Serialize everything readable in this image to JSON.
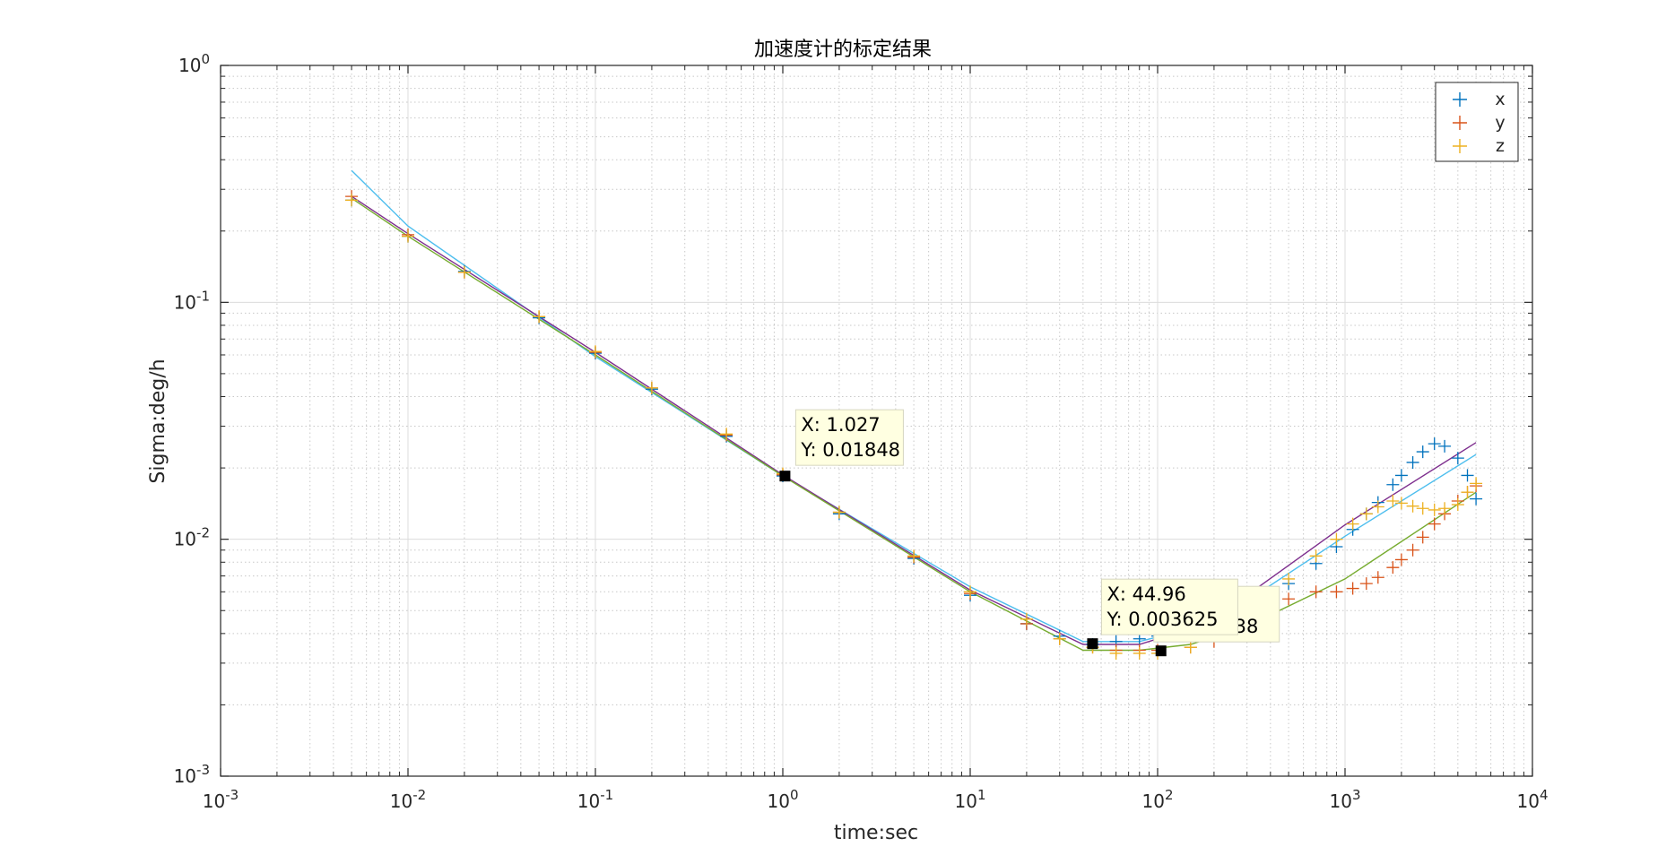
{
  "chart_data": {
    "type": "scatter",
    "title": "加速度计的标定结果",
    "xlabel": "time:sec",
    "ylabel": "Sigma:deg/h",
    "xscale": "log",
    "yscale": "log",
    "xlim": [
      0.001,
      10000
    ],
    "ylim": [
      0.001,
      1
    ],
    "grid": true,
    "minor_grid": true,
    "legend_position": "top-right",
    "x_ticks": [
      {
        "base": "10",
        "exp": "-3",
        "value": 0.001
      },
      {
        "base": "10",
        "exp": "-2",
        "value": 0.01
      },
      {
        "base": "10",
        "exp": "-1",
        "value": 0.1
      },
      {
        "base": "10",
        "exp": "0",
        "value": 1
      },
      {
        "base": "10",
        "exp": "1",
        "value": 10
      },
      {
        "base": "10",
        "exp": "2",
        "value": 100
      },
      {
        "base": "10",
        "exp": "3",
        "value": 1000
      },
      {
        "base": "10",
        "exp": "4",
        "value": 10000
      }
    ],
    "y_ticks": [
      {
        "base": "10",
        "exp": "-3",
        "value": 0.001
      },
      {
        "base": "10",
        "exp": "-2",
        "value": 0.01
      },
      {
        "base": "10",
        "exp": "-1",
        "value": 0.1
      },
      {
        "base": "10",
        "exp": "0",
        "value": 1
      }
    ],
    "series": [
      {
        "name": "x",
        "color": "#0072BD",
        "marker": "+",
        "x": [
          0.005,
          0.01,
          0.02,
          0.05,
          0.1,
          0.2,
          0.5,
          1,
          2,
          5,
          10,
          20,
          30,
          45,
          60,
          80,
          100,
          150,
          200,
          300,
          400,
          500,
          700,
          900,
          1100,
          1300,
          1500,
          1800,
          2000,
          2300,
          2600,
          3000,
          3400,
          4000,
          4500,
          5000
        ],
        "y": [
          0.27,
          0.19,
          0.135,
          0.086,
          0.061,
          0.043,
          0.0272,
          0.0185,
          0.0128,
          0.0083,
          0.0058,
          0.0044,
          0.0039,
          0.0036,
          0.0037,
          0.0038,
          0.0039,
          0.0041,
          0.0045,
          0.0052,
          0.0058,
          0.0065,
          0.0079,
          0.0093,
          0.011,
          0.0128,
          0.0143,
          0.017,
          0.0186,
          0.0211,
          0.0234,
          0.0253,
          0.0247,
          0.022,
          0.0186,
          0.0148
        ]
      },
      {
        "name": "y",
        "color": "#D95319",
        "marker": "+",
        "x": [
          0.005,
          0.01,
          0.02,
          0.05,
          0.1,
          0.2,
          0.5,
          1,
          2,
          5,
          10,
          20,
          30,
          45,
          60,
          80,
          100,
          150,
          200,
          300,
          400,
          500,
          700,
          900,
          1100,
          1300,
          1500,
          1800,
          2000,
          2300,
          2600,
          3000,
          3400,
          4000,
          4500,
          5000
        ],
        "y": [
          0.28,
          0.193,
          0.134,
          0.087,
          0.0615,
          0.0435,
          0.0275,
          0.0187,
          0.013,
          0.0084,
          0.0059,
          0.0044,
          0.0038,
          0.0035,
          0.0034,
          0.0034,
          0.0034,
          0.0035,
          0.0037,
          0.0042,
          0.005,
          0.0056,
          0.006,
          0.006,
          0.0062,
          0.0065,
          0.0069,
          0.0076,
          0.0082,
          0.009,
          0.0102,
          0.0116,
          0.0128,
          0.0145,
          0.0158,
          0.0168
        ]
      },
      {
        "name": "z",
        "color": "#EDB120",
        "marker": "+",
        "x": [
          0.005,
          0.01,
          0.02,
          0.05,
          0.1,
          0.2,
          0.5,
          1,
          2,
          5,
          10,
          20,
          30,
          45,
          60,
          80,
          100,
          150,
          200,
          300,
          400,
          500,
          700,
          900,
          1100,
          1300,
          1500,
          1800,
          2000,
          2300,
          2600,
          3000,
          3400,
          4000,
          4500,
          5000
        ],
        "y": [
          0.27,
          0.19,
          0.134,
          0.087,
          0.062,
          0.0435,
          0.0278,
          0.0189,
          0.013,
          0.0085,
          0.006,
          0.0046,
          0.0038,
          0.0035,
          0.0033,
          0.0033,
          0.0033,
          0.0035,
          0.0039,
          0.0047,
          0.0057,
          0.0068,
          0.0085,
          0.01,
          0.0116,
          0.0128,
          0.0137,
          0.0145,
          0.0142,
          0.0138,
          0.0135,
          0.0133,
          0.0135,
          0.014,
          0.0158,
          0.0172
        ]
      }
    ],
    "fit_lines": [
      {
        "color": "#4DBEEE",
        "x": [
          0.005,
          0.01,
          0.1,
          1,
          10,
          40,
          80,
          150,
          300,
          1000,
          5000
        ],
        "y": [
          0.36,
          0.21,
          0.059,
          0.0185,
          0.0063,
          0.0037,
          0.0037,
          0.0042,
          0.0055,
          0.0103,
          0.0228
        ]
      },
      {
        "color": "#7E2F8E",
        "x": [
          0.005,
          0.01,
          0.1,
          1,
          10,
          40,
          80,
          150,
          300,
          1000,
          5000
        ],
        "y": [
          0.28,
          0.195,
          0.0615,
          0.0187,
          0.0061,
          0.0036,
          0.0036,
          0.0042,
          0.0058,
          0.0115,
          0.0256
        ]
      },
      {
        "color": "#77AC30",
        "x": [
          0.005,
          0.01,
          0.1,
          1,
          10,
          40,
          80,
          150,
          300,
          1000,
          5000
        ],
        "y": [
          0.275,
          0.19,
          0.06,
          0.0185,
          0.006,
          0.0034,
          0.0034,
          0.0036,
          0.0043,
          0.0068,
          0.0158
        ]
      }
    ],
    "datatips": [
      {
        "x": 1.027,
        "y": 0.01848,
        "line1": "X: 1.027",
        "line2": "Y: 0.01848"
      },
      {
        "x": 104.2,
        "y": 0.00338,
        "line1": "X: 104.2",
        "line2": "Y: 0.00338"
      },
      {
        "x": 44.96,
        "y": 0.003625,
        "line1": "X: 44.96",
        "line2": "Y: 0.003625"
      }
    ]
  }
}
